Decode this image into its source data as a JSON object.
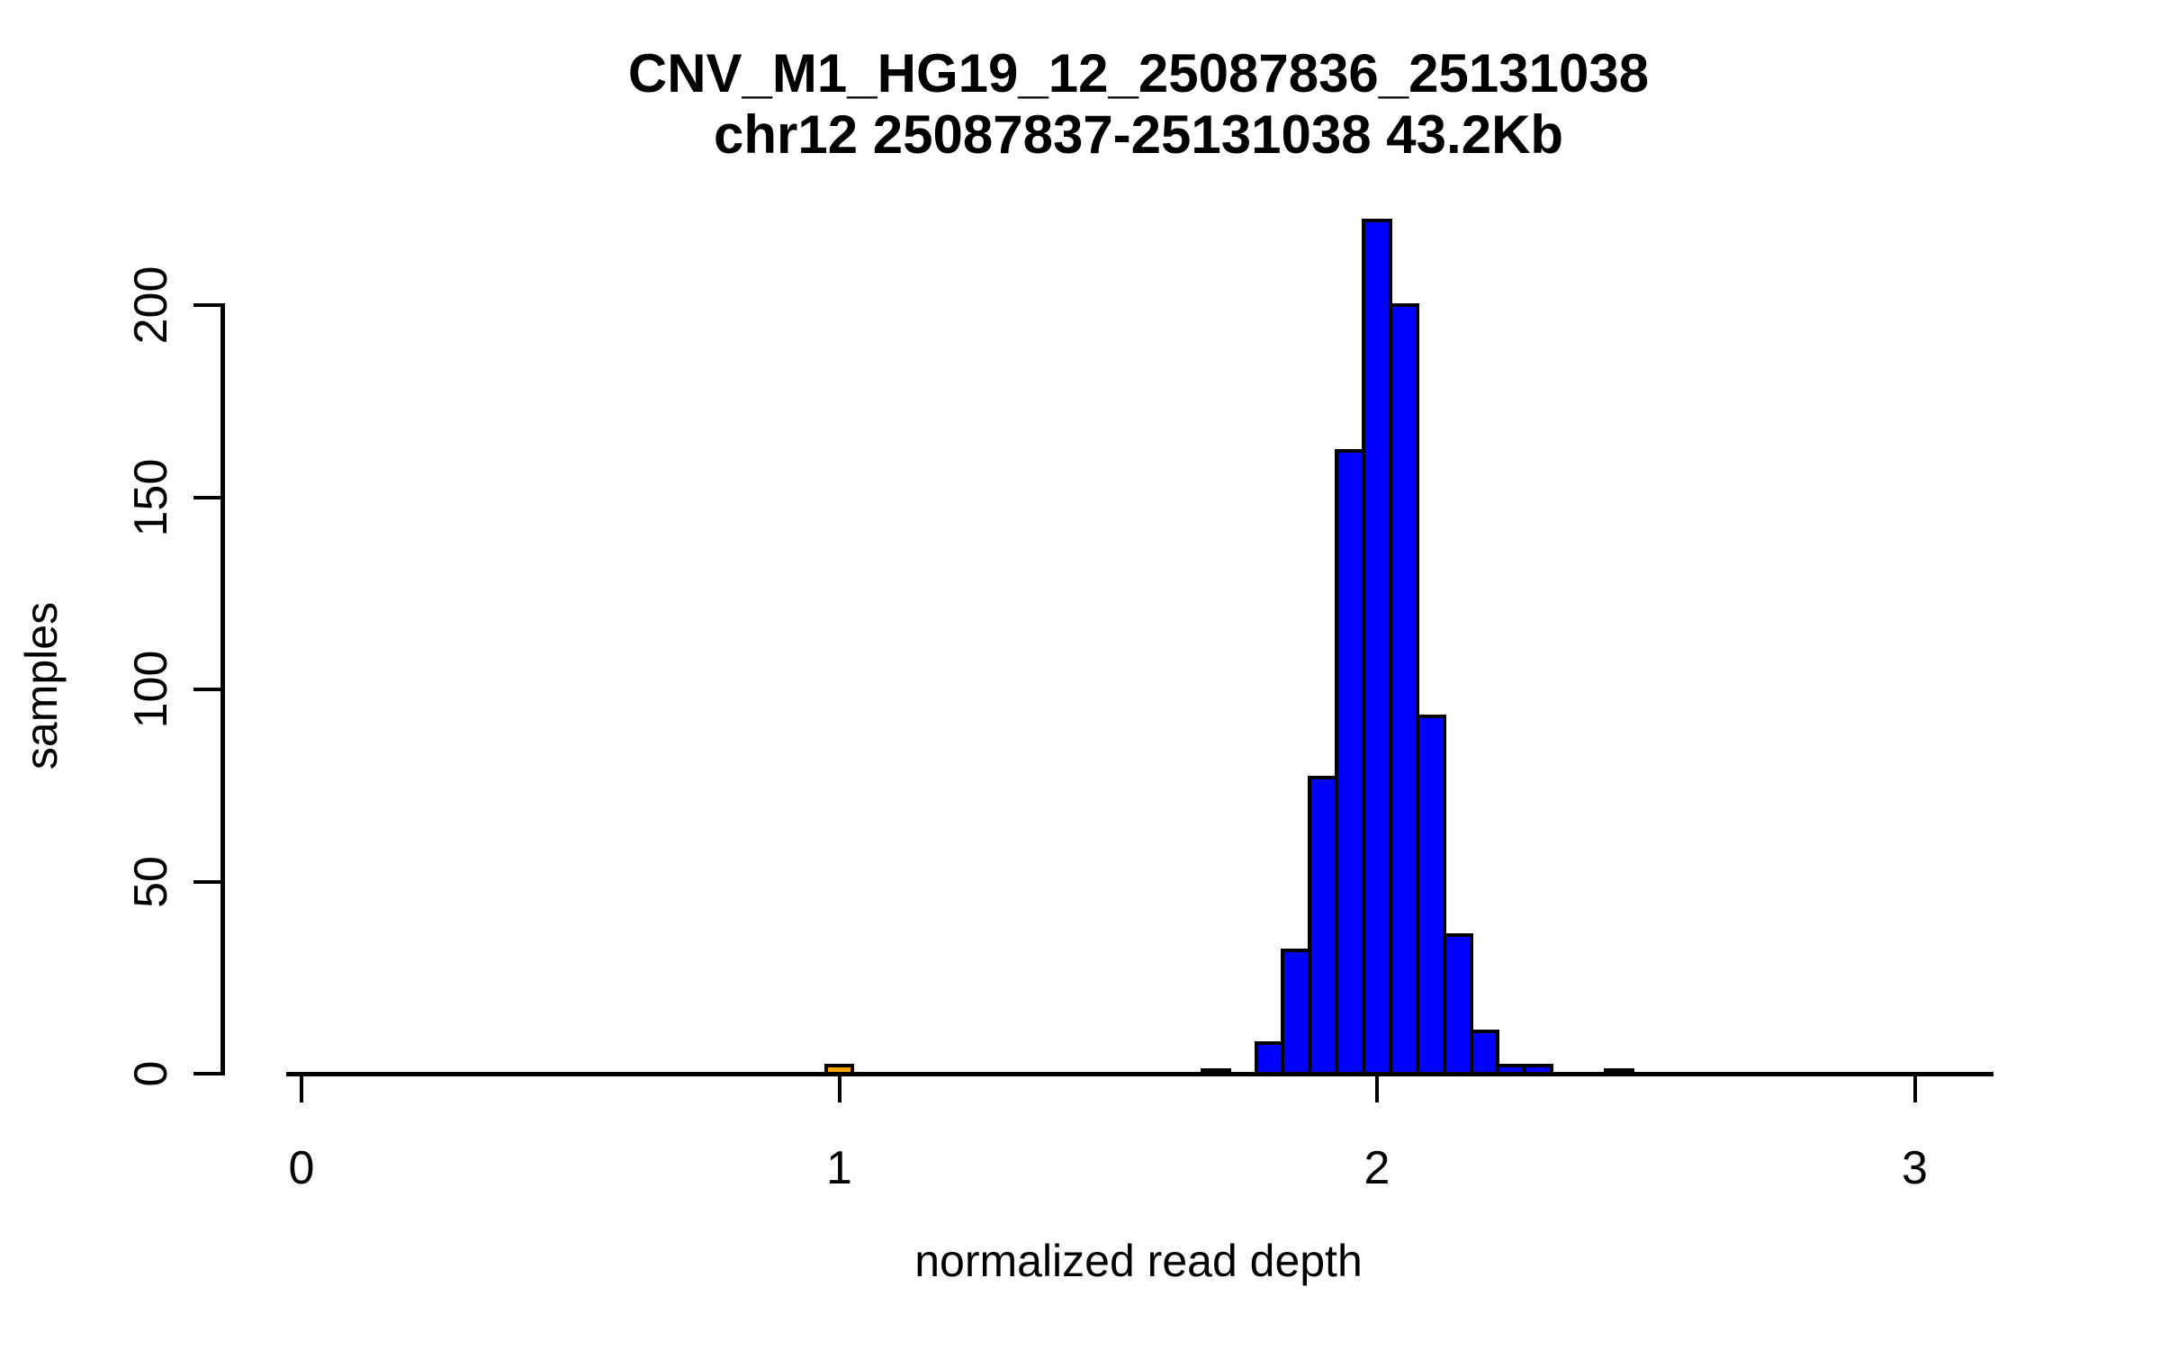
{
  "chart_data": {
    "type": "bar",
    "title": "CNV_M1_HG19_12_25087836_25131038",
    "subtitle": "chr12 25087837-25131038 43.2Kb",
    "xlabel": "normalized read depth",
    "ylabel": "samples",
    "x_ticks": [
      0,
      1,
      2,
      3
    ],
    "y_ticks": [
      0,
      50,
      100,
      150,
      200
    ],
    "xlim": [
      -0.06,
      3.15
    ],
    "ylim": [
      0,
      230
    ],
    "grid": "off",
    "legend": "none",
    "bin_width": 0.05,
    "bars": [
      {
        "center": 1.0,
        "count": 2,
        "color": "#FFA500"
      },
      {
        "center": 1.7,
        "count": 1,
        "color": "#0000FF"
      },
      {
        "center": 1.8,
        "count": 8,
        "color": "#0000FF"
      },
      {
        "center": 1.85,
        "count": 32,
        "color": "#0000FF"
      },
      {
        "center": 1.9,
        "count": 77,
        "color": "#0000FF"
      },
      {
        "center": 1.95,
        "count": 162,
        "color": "#0000FF"
      },
      {
        "center": 2.0,
        "count": 222,
        "color": "#0000FF"
      },
      {
        "center": 2.05,
        "count": 200,
        "color": "#0000FF"
      },
      {
        "center": 2.1,
        "count": 93,
        "color": "#0000FF"
      },
      {
        "center": 2.15,
        "count": 36,
        "color": "#0000FF"
      },
      {
        "center": 2.2,
        "count": 11,
        "color": "#0000FF"
      },
      {
        "center": 2.25,
        "count": 2,
        "color": "#0000FF"
      },
      {
        "center": 2.3,
        "count": 2,
        "color": "#0000FF"
      },
      {
        "center": 2.45,
        "count": 1,
        "color": "#0000FF"
      }
    ],
    "bar_stroke": "#000000",
    "colors": {
      "background": "#FFFFFF",
      "axis": "#000000",
      "text": "#000000",
      "bar_default": "#0000FF",
      "bar_highlight": "#FFA500"
    }
  }
}
